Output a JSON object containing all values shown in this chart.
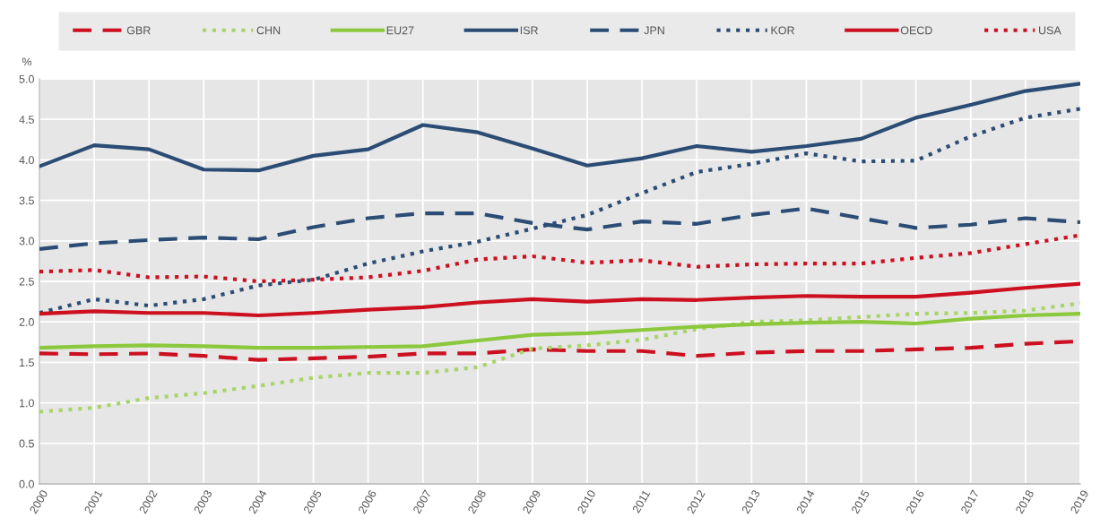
{
  "chart_data": {
    "type": "line",
    "ylabel": "%",
    "categories": [
      "2000",
      "2001",
      "2002",
      "2003",
      "2004",
      "2005",
      "2006",
      "2007",
      "2008",
      "2009",
      "2010",
      "2011",
      "2012",
      "2013",
      "2014",
      "2015",
      "2016",
      "2017",
      "2018",
      "2019"
    ],
    "ylim": [
      0,
      5
    ],
    "yticks": [
      {
        "value": 0,
        "label": "0.0"
      },
      {
        "value": 0.5,
        "label": "0.5"
      },
      {
        "value": 1,
        "label": "1.0"
      },
      {
        "value": 1.5,
        "label": "1.5"
      },
      {
        "value": 2,
        "label": "2.0"
      },
      {
        "value": 2.5,
        "label": "2.5"
      },
      {
        "value": 3,
        "label": "3.0"
      },
      {
        "value": 3.5,
        "label": "3.5"
      },
      {
        "value": 4,
        "label": "4.0"
      },
      {
        "value": 4.5,
        "label": "4.5"
      },
      {
        "value": 5,
        "label": "5.0"
      }
    ],
    "grid": true,
    "legend": "top",
    "marker": "none",
    "series": [
      {
        "name": "GBR",
        "color": "#cc1020",
        "line_style": "dashed",
        "values": [
          1.61,
          1.6,
          1.61,
          1.58,
          1.53,
          1.55,
          1.57,
          1.61,
          1.61,
          1.66,
          1.64,
          1.64,
          1.58,
          1.62,
          1.64,
          1.64,
          1.66,
          1.68,
          1.73,
          1.76
        ]
      },
      {
        "name": "CHN",
        "color": "#a8d46a",
        "line_style": "dotted",
        "values": [
          0.89,
          0.94,
          1.06,
          1.12,
          1.21,
          1.31,
          1.37,
          1.37,
          1.44,
          1.67,
          1.71,
          1.78,
          1.91,
          2.0,
          2.02,
          2.06,
          2.1,
          2.11,
          2.14,
          2.23
        ]
      },
      {
        "name": "EU27",
        "color": "#8cc83c",
        "line_style": "solid",
        "values": [
          1.68,
          1.7,
          1.71,
          1.7,
          1.68,
          1.68,
          1.69,
          1.7,
          1.77,
          1.84,
          1.86,
          1.9,
          1.94,
          1.97,
          1.99,
          2.0,
          1.98,
          2.04,
          2.08,
          2.1
        ]
      },
      {
        "name": "ISR",
        "color": "#2b4c74",
        "line_style": "solid",
        "values": [
          3.92,
          4.18,
          4.13,
          3.88,
          3.87,
          4.05,
          4.13,
          4.43,
          4.34,
          4.14,
          3.93,
          4.02,
          4.17,
          4.1,
          4.17,
          4.26,
          4.52,
          4.68,
          4.85,
          4.94
        ]
      },
      {
        "name": "JPN",
        "color": "#2b4c74",
        "line_style": "dashed",
        "values": [
          2.9,
          2.97,
          3.01,
          3.04,
          3.02,
          3.17,
          3.28,
          3.34,
          3.34,
          3.22,
          3.14,
          3.24,
          3.21,
          3.32,
          3.4,
          3.28,
          3.16,
          3.2,
          3.28,
          3.23
        ]
      },
      {
        "name": "KOR",
        "color": "#2b4c74",
        "line_style": "dotted",
        "values": [
          2.11,
          2.28,
          2.2,
          2.28,
          2.45,
          2.52,
          2.72,
          2.87,
          2.99,
          3.15,
          3.32,
          3.59,
          3.85,
          3.95,
          4.08,
          3.98,
          3.99,
          4.29,
          4.52,
          4.63
        ]
      },
      {
        "name": "OECD",
        "color": "#cc1020",
        "line_style": "solid",
        "values": [
          2.1,
          2.13,
          2.11,
          2.11,
          2.08,
          2.11,
          2.15,
          2.18,
          2.24,
          2.28,
          2.25,
          2.28,
          2.27,
          2.3,
          2.32,
          2.31,
          2.31,
          2.36,
          2.42,
          2.47
        ]
      },
      {
        "name": "USA",
        "color": "#cc1020",
        "line_style": "dotted",
        "values": [
          2.62,
          2.64,
          2.55,
          2.56,
          2.5,
          2.52,
          2.55,
          2.63,
          2.77,
          2.81,
          2.73,
          2.76,
          2.68,
          2.71,
          2.72,
          2.72,
          2.79,
          2.85,
          2.96,
          3.07
        ]
      }
    ]
  }
}
